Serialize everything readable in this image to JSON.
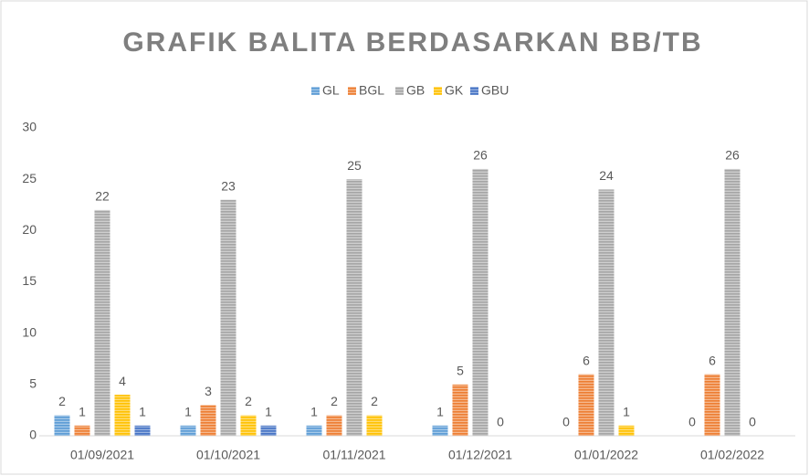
{
  "chart_data": {
    "type": "bar",
    "title": "GRAFIK BALITA BERDASARKAN BB/TB",
    "categories": [
      "01/09/2021",
      "01/10/2021",
      "01/11/2021",
      "01/12/2021",
      "01/01/2022",
      "01/02/2022"
    ],
    "series": [
      {
        "name": "GL",
        "color": "#5b9bd5",
        "values": [
          2,
          1,
          1,
          1,
          0,
          0
        ]
      },
      {
        "name": "BGL",
        "color": "#ed7d31",
        "values": [
          1,
          3,
          2,
          5,
          6,
          6
        ]
      },
      {
        "name": "GB",
        "color": "#a5a5a5",
        "values": [
          22,
          23,
          25,
          26,
          24,
          26
        ]
      },
      {
        "name": "GK",
        "color": "#ffc000",
        "values": [
          4,
          2,
          2,
          0,
          1,
          0
        ]
      },
      {
        "name": "GBU",
        "color": "#4472c4",
        "values": [
          1,
          1,
          null,
          null,
          null,
          null
        ]
      }
    ],
    "ylim": [
      0,
      30
    ],
    "yticks": [
      0,
      5,
      10,
      15,
      20,
      25,
      30
    ],
    "grid": false,
    "legend": "top"
  }
}
